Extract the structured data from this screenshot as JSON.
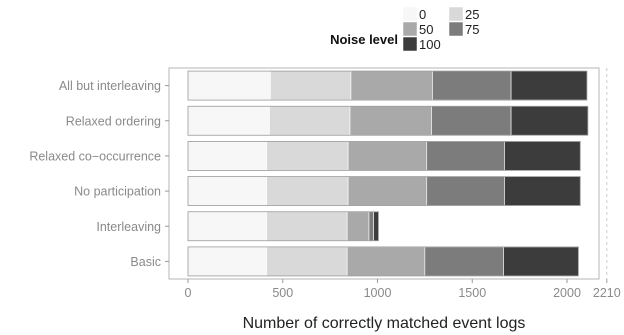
{
  "chart_data": {
    "type": "bar",
    "orientation": "horizontal",
    "stacked": true,
    "categories": [
      "All but interleaving",
      "Relaxed ordering",
      "Relaxed co−occurrence",
      "No participation",
      "Interleaving",
      "Basic"
    ],
    "series": [
      {
        "name": "0",
        "color": "#f7f7f7",
        "values": [
          435,
          430,
          415,
          415,
          415,
          415
        ]
      },
      {
        "name": "25",
        "color": "#d9d9d9",
        "values": [
          425,
          425,
          430,
          430,
          425,
          425
        ]
      },
      {
        "name": "50",
        "color": "#a9a9a9",
        "values": [
          430,
          430,
          415,
          415,
          115,
          410
        ]
      },
      {
        "name": "75",
        "color": "#7c7c7c",
        "values": [
          415,
          420,
          410,
          410,
          25,
          415
        ]
      },
      {
        "name": "100",
        "color": "#3c3c3c",
        "values": [
          400,
          405,
          400,
          400,
          25,
          395
        ]
      }
    ],
    "xlabel": "Number of correctly matched event logs",
    "ylabel": "",
    "xlim": [
      0,
      2300
    ],
    "xticks": [
      "0",
      "500",
      "1000",
      "1500",
      "2000",
      "2210"
    ],
    "xtick_values": [
      0,
      500,
      1000,
      1500,
      2000,
      2210
    ],
    "reference_line": 2210,
    "grid": false,
    "legend": {
      "title": "Noise level",
      "placement": "top-right"
    }
  }
}
